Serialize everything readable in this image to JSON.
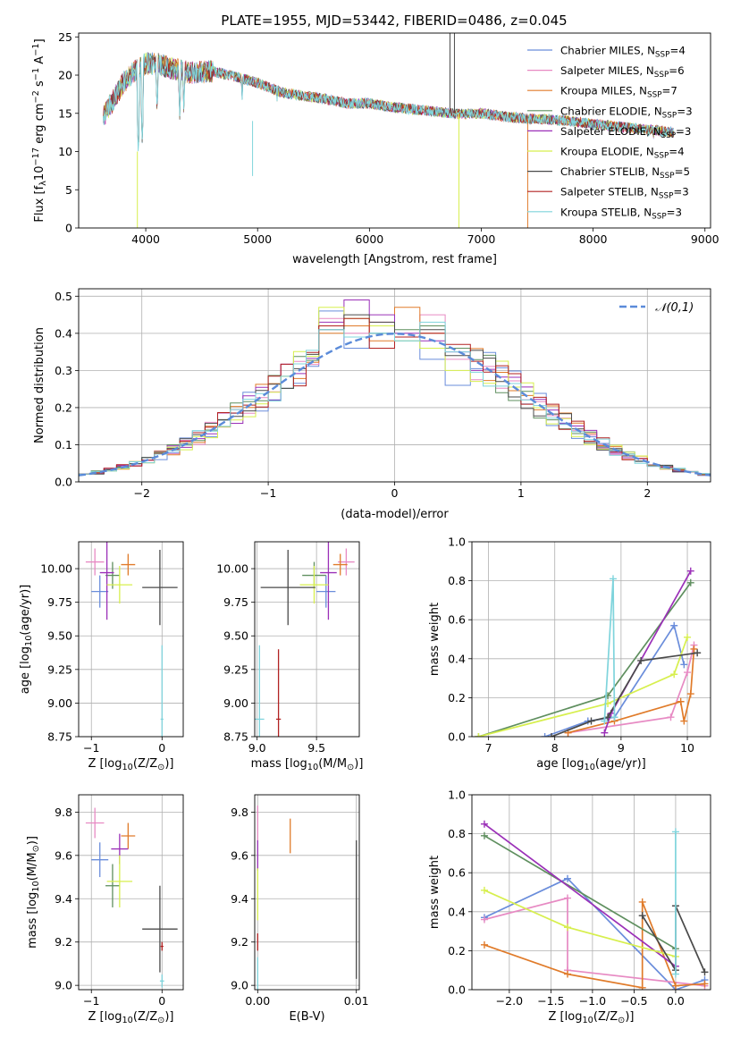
{
  "figure_title": "PLATE=1955, MJD=53442, FIBERID=0486, z=0.045",
  "colors": {
    "Chabrier MILES": "#6a8ddb",
    "Salpeter MILES": "#e78ac3",
    "Kroupa MILES": "#e07b2a",
    "Chabrier ELODIE": "#5f8f5f",
    "Salpeter ELODIE": "#9b30b8",
    "Kroupa ELODIE": "#d7ef4e",
    "Chabrier STELIB": "#4a4a4a",
    "Salpeter STELIB": "#b22222",
    "Kroupa STELIB": "#7fd4dc",
    "normal_curve": "#5b8bd9",
    "grid": "#b0b0b0"
  },
  "chart_data": [
    {
      "id": "spectrum",
      "type": "line",
      "title": "PLATE=1955, MJD=53442, FIBERID=0486, z=0.045",
      "xlabel": "wavelength [Angstrom, rest frame]",
      "ylabel": "Flux [f",
      "ylabel_parts": [
        "Flux [f",
        "λ",
        "10",
        "−17",
        " erg cm",
        "−2",
        " s",
        "−1",
        " A",
        "−1",
        "]"
      ],
      "xlim": [
        3400,
        9050
      ],
      "ylim": [
        0,
        25.5
      ],
      "xticks": [
        4000,
        5000,
        6000,
        7000,
        8000,
        9000
      ],
      "yticks": [
        0,
        5,
        10,
        15,
        20,
        25
      ],
      "grid": false,
      "legend_position": "top-right",
      "legend": [
        {
          "name": "Chabrier MILES",
          "nssp": 4
        },
        {
          "name": "Salpeter MILES",
          "nssp": 6
        },
        {
          "name": "Kroupa MILES",
          "nssp": 7
        },
        {
          "name": "Chabrier ELODIE",
          "nssp": 3
        },
        {
          "name": "Salpeter ELODIE",
          "nssp": 3
        },
        {
          "name": "Kroupa ELODIE",
          "nssp": 4
        },
        {
          "name": "Chabrier STELIB",
          "nssp": 5
        },
        {
          "name": "Salpeter STELIB",
          "nssp": 3
        },
        {
          "name": "Kroupa STELIB",
          "nssp": 3
        }
      ],
      "legend_sub": "SSP",
      "continuum": [
        [
          3620,
          14.5
        ],
        [
          3700,
          16.5
        ],
        [
          3800,
          19.0
        ],
        [
          3900,
          20.5
        ],
        [
          4000,
          21.5
        ],
        [
          4100,
          21.5
        ],
        [
          4200,
          21.0
        ],
        [
          4400,
          20.3
        ],
        [
          4600,
          20.5
        ],
        [
          4800,
          19.8
        ],
        [
          5000,
          19.0
        ],
        [
          5200,
          17.8
        ],
        [
          5400,
          17.3
        ],
        [
          5600,
          16.9
        ],
        [
          5800,
          16.3
        ],
        [
          6000,
          16.3
        ],
        [
          6200,
          15.8
        ],
        [
          6400,
          15.5
        ],
        [
          6600,
          15.2
        ],
        [
          6800,
          14.9
        ],
        [
          7000,
          15.0
        ],
        [
          7200,
          14.6
        ],
        [
          7400,
          14.3
        ],
        [
          7600,
          14.2
        ],
        [
          7800,
          14.0
        ],
        [
          8000,
          13.6
        ],
        [
          8200,
          13.3
        ],
        [
          8400,
          13.0
        ],
        [
          8600,
          12.7
        ],
        [
          8720,
          12.5
        ]
      ],
      "absorption_lines": [
        [
          3934,
          9.0
        ],
        [
          3969,
          10.5
        ],
        [
          4102,
          14.5
        ],
        [
          4304,
          14.0
        ],
        [
          4340,
          15.0
        ],
        [
          4861,
          16.0
        ],
        [
          5175,
          16.0
        ],
        [
          5270,
          17.0
        ],
        [
          5893,
          15.5
        ],
        [
          8498,
          12.0
        ],
        [
          8542,
          10.5
        ],
        [
          8662,
          11.5
        ]
      ],
      "features": [
        {
          "x": 3925,
          "ymin": 0,
          "ymax": 10.0,
          "series": "Kroupa ELODIE"
        },
        {
          "x": 4955,
          "ymin": 6.8,
          "ymax": 14.0,
          "series": "Kroupa STELIB"
        },
        {
          "x": 6720,
          "ymin": 15.0,
          "ymax": 25.5,
          "series": "Chabrier STELIB"
        },
        {
          "x": 6760,
          "ymin": 15.0,
          "ymax": 25.5,
          "series": "Chabrier STELIB"
        },
        {
          "x": 6800,
          "ymin": 0,
          "ymax": 15.0,
          "series": "Kroupa ELODIE"
        },
        {
          "x": 7415,
          "ymin": 0,
          "ymax": 14.2,
          "series": "Kroupa MILES"
        }
      ]
    },
    {
      "id": "residuals",
      "type": "histogram",
      "xlabel": "(data-model)/error",
      "ylabel": "Normed distribution",
      "xlim": [
        -2.5,
        2.5
      ],
      "ylim": [
        0,
        0.52
      ],
      "xticks": [
        -2,
        -1,
        0,
        1,
        2
      ],
      "yticks": [
        0.0,
        0.1,
        0.2,
        0.3,
        0.4,
        0.5
      ],
      "grid": true,
      "bin_width": 0.1,
      "legend_position": "top-right",
      "legend": [
        {
          "name": "𝒩(0,1)",
          "style": "dashed"
        }
      ],
      "bumps": {
        "Chabrier MILES": [
          0.46,
          0.36,
          0.4,
          0.38,
          0.33,
          0.26
        ],
        "Salpeter MILES": [
          0.44,
          0.4,
          0.43,
          0.39,
          0.45,
          0.33
        ],
        "Kroupa MILES": [
          0.4,
          0.42,
          0.38,
          0.47,
          0.4,
          0.36
        ],
        "Chabrier ELODIE": [
          0.42,
          0.39,
          0.4,
          0.41,
          0.42,
          0.36
        ],
        "Salpeter ELODIE": [
          0.43,
          0.49,
          0.45,
          0.4,
          0.38,
          0.35
        ],
        "Kroupa ELODIE": [
          0.47,
          0.44,
          0.42,
          0.38,
          0.36,
          0.3
        ],
        "Chabrier STELIB": [
          0.41,
          0.45,
          0.43,
          0.39,
          0.41,
          0.34
        ],
        "Salpeter STELIB": [
          0.42,
          0.44,
          0.36,
          0.39,
          0.4,
          0.37
        ],
        "Kroupa STELIB": [
          0.41,
          0.39,
          0.4,
          0.38,
          0.43,
          0.35
        ]
      }
    },
    {
      "id": "age-vs-Z",
      "type": "errorbar",
      "xlabel": "Z [log",
      "xlabel_parts": [
        "Z [log",
        "10",
        "(Z/Z",
        "⊙",
        ")]"
      ],
      "ylabel": "age  [log",
      "ylabel_parts": [
        "age  [log",
        "10",
        "(age/yr)]"
      ],
      "xlim": [
        -1.18,
        0.3
      ],
      "ylim": [
        8.75,
        10.2
      ],
      "xticks": [
        -1,
        0
      ],
      "yticks": [
        8.75,
        9.0,
        9.25,
        9.5,
        9.75,
        10.0
      ],
      "grid": true,
      "points": [
        {
          "series": "Chabrier MILES",
          "x": -0.88,
          "xerr": 0.12,
          "y": 9.83,
          "yerr": 0.12
        },
        {
          "series": "Salpeter MILES",
          "x": -0.95,
          "xerr": 0.13,
          "y": 10.05,
          "yerr": 0.1
        },
        {
          "series": "Kroupa MILES",
          "x": -0.48,
          "xerr": 0.1,
          "y": 10.03,
          "yerr": 0.08
        },
        {
          "series": "Chabrier ELODIE",
          "x": -0.7,
          "xerr": 0.1,
          "y": 9.95,
          "yerr": 0.1
        },
        {
          "series": "Salpeter ELODIE",
          "x": -0.78,
          "xerr": 0.1,
          "y": 9.97,
          "yerr": 0.35
        },
        {
          "series": "Kroupa ELODIE",
          "x": -0.6,
          "xerr": 0.18,
          "y": 9.88,
          "yerr": 0.14
        },
        {
          "series": "Chabrier STELIB",
          "x": -0.03,
          "xerr": 0.25,
          "y": 9.86,
          "yerr": 0.28
        },
        {
          "series": "Kroupa STELIB",
          "x": 0.0,
          "xerr": 0.02,
          "y": 8.88,
          "yerr": 0.55
        }
      ]
    },
    {
      "id": "age-vs-mass",
      "type": "errorbar",
      "xlabel": "mass [log",
      "xlabel_parts": [
        "mass [log",
        "10",
        "(M/M",
        "⊙",
        ")]"
      ],
      "ylabel": "",
      "xlim": [
        8.98,
        9.86
      ],
      "ylim": [
        8.75,
        10.2
      ],
      "xticks": [
        9.0,
        9.5
      ],
      "yticks": [
        8.75,
        9.0,
        9.25,
        9.5,
        9.75,
        10.0
      ],
      "grid": true,
      "points": [
        {
          "series": "Chabrier MILES",
          "x": 9.58,
          "xerr": 0.08,
          "y": 9.83,
          "yerr": 0.12
        },
        {
          "series": "Salpeter MILES",
          "x": 9.75,
          "xerr": 0.07,
          "y": 10.05,
          "yerr": 0.1
        },
        {
          "series": "Kroupa MILES",
          "x": 9.7,
          "xerr": 0.06,
          "y": 10.03,
          "yerr": 0.08
        },
        {
          "series": "Chabrier ELODIE",
          "x": 9.48,
          "xerr": 0.1,
          "y": 9.95,
          "yerr": 0.1
        },
        {
          "series": "Salpeter ELODIE",
          "x": 9.6,
          "xerr": 0.07,
          "y": 9.97,
          "yerr": 0.35
        },
        {
          "series": "Kroupa ELODIE",
          "x": 9.48,
          "xerr": 0.12,
          "y": 9.88,
          "yerr": 0.14
        },
        {
          "series": "Chabrier STELIB",
          "x": 9.26,
          "xerr": 0.23,
          "y": 9.86,
          "yerr": 0.28
        },
        {
          "series": "Salpeter STELIB",
          "x": 9.18,
          "xerr": 0.02,
          "y": 8.88,
          "yerr": 0.52
        },
        {
          "series": "Kroupa STELIB",
          "x": 9.02,
          "xerr": 0.04,
          "y": 8.88,
          "yerr": 0.55
        }
      ]
    },
    {
      "id": "mass-weight-vs-age",
      "type": "line",
      "xlabel": "age  [log",
      "xlabel_parts": [
        "age  [log",
        "10",
        "(age/yr)]"
      ],
      "ylabel": "mass weight",
      "xlim": [
        6.75,
        10.35
      ],
      "ylim": [
        0,
        1.0
      ],
      "xticks": [
        7,
        8,
        9,
        10
      ],
      "yticks": [
        0.0,
        0.2,
        0.4,
        0.6,
        0.8,
        1.0
      ],
      "grid": true,
      "series": [
        {
          "name": "Chabrier MILES",
          "x": [
            7.85,
            8.5,
            8.9,
            9.8,
            9.95
          ],
          "y": [
            0.0,
            0.08,
            0.1,
            0.57,
            0.37
          ]
        },
        {
          "name": "Salpeter MILES",
          "x": [
            8.2,
            9.75,
            10.0,
            10.1
          ],
          "y": [
            0.02,
            0.1,
            0.33,
            0.47
          ]
        },
        {
          "name": "Kroupa MILES",
          "x": [
            8.2,
            8.9,
            9.9,
            9.95,
            10.05,
            10.1
          ],
          "y": [
            0.02,
            0.08,
            0.18,
            0.08,
            0.22,
            0.45
          ]
        },
        {
          "name": "Chabrier ELODIE",
          "x": [
            6.85,
            8.8,
            10.05
          ],
          "y": [
            0.0,
            0.21,
            0.79
          ]
        },
        {
          "name": "Salpeter ELODIE",
          "x": [
            8.75,
            8.85,
            10.05
          ],
          "y": [
            0.02,
            0.12,
            0.85
          ]
        },
        {
          "name": "Kroupa ELODIE",
          "x": [
            6.85,
            8.8,
            9.8,
            10.0
          ],
          "y": [
            0.0,
            0.17,
            0.32,
            0.51
          ]
        },
        {
          "name": "Chabrier STELIB",
          "x": [
            7.95,
            8.55,
            8.8,
            9.3,
            10.15
          ],
          "y": [
            0.0,
            0.08,
            0.1,
            0.39,
            0.43
          ]
        },
        {
          "name": "Kroupa STELIB",
          "x": [
            8.75,
            8.88,
            8.9
          ],
          "y": [
            0.08,
            0.81,
            0.1
          ]
        }
      ]
    },
    {
      "id": "mass-vs-Z",
      "type": "errorbar",
      "xlabel": "Z [log",
      "xlabel_parts": [
        "Z [log",
        "10",
        "(Z/Z",
        "⊙",
        ")]"
      ],
      "ylabel": "mass [log",
      "ylabel_parts": [
        "mass [log",
        "10",
        "(M/M",
        "⊙",
        ")]"
      ],
      "xlim": [
        -1.18,
        0.3
      ],
      "ylim": [
        8.98,
        9.88
      ],
      "xticks": [
        -1,
        0
      ],
      "yticks": [
        9.0,
        9.2,
        9.4,
        9.6,
        9.8
      ],
      "grid": true,
      "points": [
        {
          "series": "Chabrier MILES",
          "x": -0.88,
          "xerr": 0.12,
          "y": 9.58,
          "yerr": 0.08
        },
        {
          "series": "Salpeter MILES",
          "x": -0.95,
          "xerr": 0.13,
          "y": 9.75,
          "yerr": 0.07
        },
        {
          "series": "Kroupa MILES",
          "x": -0.48,
          "xerr": 0.1,
          "y": 9.69,
          "yerr": 0.06
        },
        {
          "series": "Chabrier ELODIE",
          "x": -0.7,
          "xerr": 0.1,
          "y": 9.46,
          "yerr": 0.1
        },
        {
          "series": "Salpeter ELODIE",
          "x": -0.6,
          "xerr": 0.12,
          "y": 9.63,
          "yerr": 0.07
        },
        {
          "series": "Kroupa ELODIE",
          "x": -0.6,
          "xerr": 0.18,
          "y": 9.48,
          "yerr": 0.12
        },
        {
          "series": "Chabrier STELIB",
          "x": -0.03,
          "xerr": 0.25,
          "y": 9.26,
          "yerr": 0.2
        },
        {
          "series": "Salpeter STELIB",
          "x": 0.0,
          "xerr": 0.02,
          "y": 9.18,
          "yerr": 0.02
        },
        {
          "series": "Kroupa STELIB",
          "x": 0.0,
          "xerr": 0.03,
          "y": 9.02,
          "yerr": 0.03
        }
      ]
    },
    {
      "id": "mass-vs-ebv",
      "type": "errorbar",
      "xlabel": "E(B-V)",
      "ylabel": "",
      "xlim": [
        -0.0003,
        0.0103
      ],
      "ylim": [
        8.98,
        9.88
      ],
      "xticks": [
        0.0,
        0.01
      ],
      "xtick_labels": [
        "0.00",
        "0.01"
      ],
      "yticks": [
        9.0,
        9.2,
        9.4,
        9.6,
        9.8
      ],
      "grid": true,
      "points": [
        {
          "series": "Salpeter MILES",
          "x": 0.0,
          "xerr": 0,
          "y": 9.75,
          "yerr": 0.08
        },
        {
          "series": "Kroupa MILES",
          "x": 0.0033,
          "xerr": 0,
          "y": 9.69,
          "yerr": 0.08
        },
        {
          "series": "Salpeter ELODIE",
          "x": 0.0,
          "xerr": 0,
          "y": 9.6,
          "yerr": 0.07
        },
        {
          "series": "Kroupa ELODIE",
          "x": 0.0,
          "xerr": 0,
          "y": 9.42,
          "yerr": 0.12
        },
        {
          "series": "Chabrier STELIB",
          "x": 0.01,
          "xerr": 0,
          "y": 9.35,
          "yerr": 0.32
        },
        {
          "series": "Salpeter STELIB",
          "x": 0.0,
          "xerr": 0,
          "y": 9.2,
          "yerr": 0.04
        },
        {
          "series": "Kroupa STELIB",
          "x": 0.0,
          "xerr": 0,
          "y": 9.05,
          "yerr": 0.08
        }
      ]
    },
    {
      "id": "mass-weight-vs-Z",
      "type": "line",
      "xlabel": "Z [log",
      "xlabel_parts": [
        "Z [log",
        "10",
        "(Z/Z",
        "⊙",
        ")]"
      ],
      "ylabel": "mass weight",
      "xlim": [
        -2.45,
        0.42
      ],
      "ylim": [
        0,
        1.0
      ],
      "xticks": [
        -2.0,
        -1.5,
        -1.0,
        -0.5,
        0.0
      ],
      "yticks": [
        0.0,
        0.2,
        0.4,
        0.6,
        0.8,
        1.0
      ],
      "grid": true,
      "series": [
        {
          "name": "Chabrier MILES",
          "x": [
            -2.3,
            -1.3,
            0.0,
            0.35
          ],
          "y": [
            0.37,
            0.57,
            0.0,
            0.05
          ]
        },
        {
          "name": "Salpeter MILES",
          "x": [
            -2.3,
            -1.3,
            -1.3,
            0.35
          ],
          "y": [
            0.36,
            0.47,
            0.1,
            0.02
          ]
        },
        {
          "name": "Kroupa MILES",
          "x": [
            -2.3,
            -1.3,
            -0.4,
            -0.4,
            0.0,
            0.35
          ],
          "y": [
            0.23,
            0.08,
            0.01,
            0.45,
            0.02,
            0.03
          ]
        },
        {
          "name": "Chabrier ELODIE",
          "x": [
            -2.3,
            0.0
          ],
          "y": [
            0.79,
            0.21
          ]
        },
        {
          "name": "Salpeter ELODIE",
          "x": [
            -2.3,
            0.0
          ],
          "y": [
            0.85,
            0.12
          ]
        },
        {
          "name": "Kroupa ELODIE",
          "x": [
            -2.3,
            -1.3,
            0.0
          ],
          "y": [
            0.51,
            0.32,
            0.17
          ]
        },
        {
          "name": "Chabrier STELIB",
          "x": [
            -0.4,
            0.0,
            0.0,
            0.35
          ],
          "y": [
            0.38,
            0.1,
            0.43,
            0.09
          ]
        },
        {
          "name": "Kroupa STELIB",
          "x": [
            0.0,
            0.0
          ],
          "y": [
            0.08,
            0.81
          ]
        }
      ]
    }
  ]
}
